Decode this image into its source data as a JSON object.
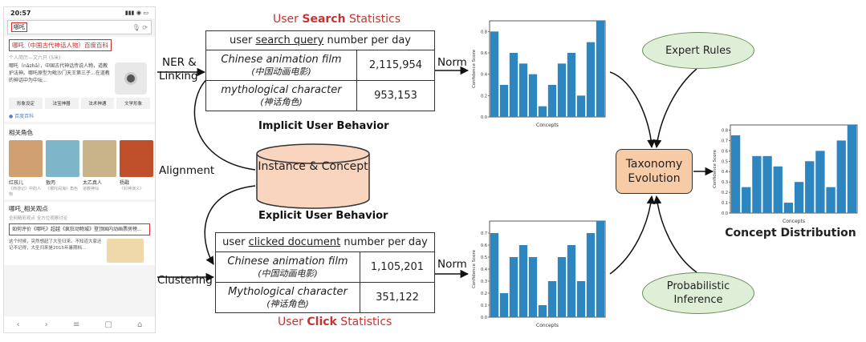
{
  "phone": {
    "time": "20:57",
    "signal": "▮▮▮ ◉ ▭",
    "query": "哪吒",
    "result_title": "哪吒（中国古代神话人物）百度百科",
    "result_sub": "个人简历—文六只 (5米)",
    "result_text": "哪吒（nǎzhā），中国古代神话传说人物，道教护法神。哪吒原型为毗沙门天王第三子...在道教的神话中为中坛...",
    "chips": [
      "形象设定",
      "法宝神器",
      "法术神通",
      "文学形象"
    ],
    "source": "百度百科",
    "related_title": "相关角色",
    "characters": [
      {
        "name": "红孩儿",
        "desc": "《西游记》中的人物",
        "color": "#d0a070"
      },
      {
        "name": "敖丙",
        "desc": "《哪吒闹海》角色",
        "color": "#7fb5c9"
      },
      {
        "name": "太乙真人",
        "desc": "道教神仙",
        "color": "#c9b48a"
      },
      {
        "name": "杨戬",
        "desc": "《封神演义》",
        "color": "#c0502c"
      }
    ],
    "views_title": "哪吒_相关观点",
    "views_sub": "全网精彩观点 全方位观察讨论",
    "question": "如何评价《哪吒》超越《疯狂动物城》登顶国内动画票房榜...",
    "answer": "这个时候，突然想起了大圣归来。不知道大家还记不记得，大圣归来是2015年暑期档..."
  },
  "search": {
    "title_prefix": "User ",
    "title_bold": "Search",
    "title_suffix": " Statistics",
    "header_pre": "user ",
    "header_underline": "search query",
    "header_post": " number per day",
    "rows": [
      {
        "en": "Chinese animation film",
        "zh": "(中国动画电影)",
        "value": "2,115,954"
      },
      {
        "en": "mythological character",
        "zh": "(神话角色)",
        "value": "953,153"
      }
    ],
    "caption": "Implicit User Behavior"
  },
  "click": {
    "title_prefix": "User ",
    "title_bold": "Click",
    "title_suffix": " Statistics",
    "header_pre": "user ",
    "header_underline": "clicked document",
    "header_post": " number per day",
    "rows": [
      {
        "en": "Chinese animation film",
        "zh": "(中国动画电影)",
        "value": "1,105,201"
      },
      {
        "en": "Mythological character",
        "zh": "(神话角色)",
        "value": "351,122"
      }
    ],
    "caption": "Explicit User Behavior"
  },
  "labels": {
    "ner_line1": "NER &",
    "ner_line2": "Linking",
    "alignment": "Alignment",
    "clustering": "Clustering",
    "norm_top": "Norm",
    "norm_bottom": "Norm"
  },
  "nodes": {
    "instance_concept": "Instance & Concept",
    "expert_rules": "Expert Rules",
    "taxonomy_line1": "Taxonomy",
    "taxonomy_line2": "Evolution",
    "prob_line1": "Probabilistic",
    "prob_line2": "Inference"
  },
  "dist_caption": "Concept Distribution",
  "colors": {
    "bar": "#2e86c1",
    "accent_red": "#c8332e"
  },
  "chart_data": [
    {
      "type": "bar",
      "title": "",
      "xlabel": "Concepts",
      "ylabel": "Confidence Score",
      "ylim": [
        0,
        0.9
      ],
      "yticks": [
        "0.0",
        "0.2",
        "0.4",
        "0.6",
        "0.8"
      ],
      "ytick_values": [
        0,
        0.2,
        0.4,
        0.6,
        0.8
      ],
      "values": [
        0.8,
        0.3,
        0.6,
        0.5,
        0.4,
        0.1,
        0.3,
        0.5,
        0.6,
        0.2,
        0.7,
        0.9
      ]
    },
    {
      "type": "bar",
      "title": "",
      "xlabel": "Concepts",
      "ylabel": "Confidence Score",
      "ylim": [
        0,
        0.8
      ],
      "yticks": [
        "0.0",
        "0.1",
        "0.2",
        "0.3",
        "0.4",
        "0.5",
        "0.6",
        "0.7"
      ],
      "ytick_values": [
        0,
        0.1,
        0.2,
        0.3,
        0.4,
        0.5,
        0.6,
        0.7
      ],
      "values": [
        0.7,
        0.2,
        0.5,
        0.6,
        0.5,
        0.1,
        0.3,
        0.5,
        0.6,
        0.3,
        0.7,
        0.8
      ]
    },
    {
      "type": "bar",
      "title": "",
      "xlabel": "Concepts",
      "ylabel": "Confidence Score",
      "ylim": [
        0,
        0.85
      ],
      "yticks": [
        "0.0",
        "0.1",
        "0.2",
        "0.3",
        "0.4",
        "0.5",
        "0.6",
        "0.7",
        "0.8"
      ],
      "ytick_values": [
        0,
        0.1,
        0.2,
        0.3,
        0.4,
        0.5,
        0.6,
        0.7,
        0.8
      ],
      "values": [
        0.75,
        0.25,
        0.55,
        0.55,
        0.45,
        0.1,
        0.3,
        0.5,
        0.6,
        0.25,
        0.7,
        0.85
      ]
    }
  ]
}
